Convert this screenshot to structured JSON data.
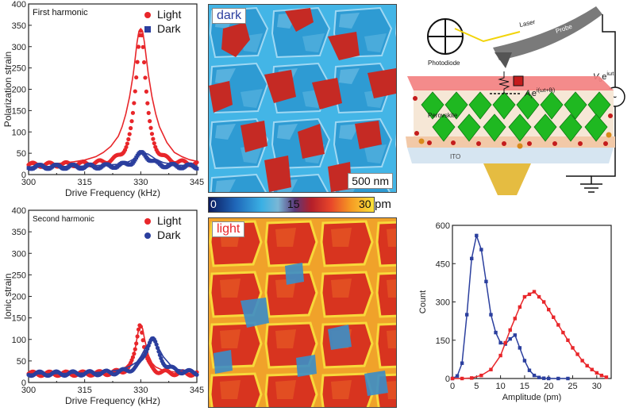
{
  "chart_data": [
    {
      "id": "first",
      "type": "scatter",
      "title": "First harmonic",
      "xlabel": "Drive Frequency (kHz)",
      "ylabel": "Polarization strain",
      "xlim": [
        300,
        345
      ],
      "ylim": [
        0,
        400
      ],
      "xticks": [
        300,
        315,
        330,
        345
      ],
      "xticks_minor": [
        307.5,
        322.5,
        337.5
      ],
      "yticks": [
        0,
        50,
        100,
        150,
        200,
        250,
        300,
        350,
        400
      ],
      "legend": "top-right",
      "series": [
        {
          "name": "Light",
          "color": "#e8262a",
          "marker": "circle",
          "peak": {
            "x0": 330,
            "amp": 320,
            "gamma": 1.6,
            "base": 22
          },
          "x": [
            300,
            303,
            306,
            309,
            312,
            315,
            318,
            320,
            322,
            324,
            325,
            326,
            327,
            328,
            328.5,
            329,
            329.5,
            330,
            330.5,
            331,
            331.5,
            332,
            333,
            334,
            335,
            337,
            339,
            341,
            343,
            345
          ],
          "y": [
            23,
            24,
            25,
            27,
            30,
            34,
            42,
            52,
            66,
            90,
            112,
            142,
            182,
            236,
            272,
            309,
            336,
            342,
            336,
            309,
            272,
            236,
            182,
            142,
            112,
            75,
            52,
            42,
            35,
            31
          ]
        },
        {
          "name": "Dark",
          "color": "#2b3f9e",
          "marker": "square",
          "peak": {
            "x0": 330.5,
            "amp": 32,
            "gamma": 2.2,
            "base": 18
          },
          "x": [
            300,
            305,
            310,
            315,
            320,
            324,
            326,
            327,
            328,
            329,
            330,
            331,
            332,
            333,
            334,
            336,
            340,
            345
          ],
          "y": [
            18,
            19,
            19,
            20,
            22,
            24,
            28,
            31,
            36,
            42,
            48,
            50,
            48,
            42,
            36,
            28,
            22,
            20
          ]
        }
      ]
    },
    {
      "id": "second",
      "type": "scatter",
      "title": "Second harmonic",
      "xlabel": "Drive Frequency (kHz)",
      "ylabel": "Ionic strain",
      "xlim": [
        300,
        345
      ],
      "ylim": [
        0,
        400
      ],
      "xticks": [
        300,
        315,
        330,
        345
      ],
      "xticks_minor": [
        307.5,
        322.5,
        337.5
      ],
      "yticks": [
        0,
        50,
        100,
        150,
        200,
        250,
        300,
        350,
        400
      ],
      "legend": "top-right",
      "series": [
        {
          "name": "Light",
          "color": "#e8262a",
          "marker": "circle",
          "peak": {
            "x0": 329.8,
            "amp": 118,
            "gamma": 1.2,
            "base": 20
          },
          "x": [
            300,
            305,
            310,
            315,
            320,
            324,
            326,
            327,
            328,
            328.5,
            329,
            329.5,
            330,
            330.5,
            331,
            332,
            333,
            334,
            336,
            340,
            345
          ],
          "y": [
            20,
            20,
            21,
            22,
            24,
            29,
            36,
            45,
            62,
            78,
            103,
            127,
            134,
            125,
            102,
            64,
            45,
            36,
            28,
            23,
            21
          ]
        },
        {
          "name": "Dark",
          "color": "#2b3f9e",
          "marker": "circle",
          "peak": {
            "x0": 333,
            "amp": 82,
            "gamma": 2.2,
            "base": 20
          },
          "x": [
            300,
            305,
            310,
            315,
            320,
            324,
            327,
            329,
            330,
            331,
            332,
            333,
            334,
            335,
            336,
            338,
            340,
            345
          ],
          "y": [
            20,
            20,
            21,
            22,
            24,
            29,
            37,
            48,
            60,
            76,
            90,
            100,
            92,
            76,
            60,
            40,
            30,
            24
          ]
        }
      ]
    },
    {
      "id": "hist",
      "type": "line",
      "title": "",
      "xlabel": "Amplitude (pm)",
      "ylabel": "Count",
      "xlim": [
        0,
        33
      ],
      "ylim": [
        0,
        600
      ],
      "xticks": [
        0,
        5,
        10,
        15,
        20,
        25,
        30
      ],
      "yticks": [
        0,
        150,
        300,
        450,
        600
      ],
      "legend": "none",
      "series": [
        {
          "name": "Dark",
          "color": "#2b3f9e",
          "x": [
            0,
            1,
            2,
            3,
            4,
            5,
            6,
            7,
            8,
            9,
            10,
            11,
            12,
            13,
            14,
            15,
            16,
            17,
            18,
            19,
            20,
            22,
            24
          ],
          "y": [
            0,
            10,
            60,
            250,
            470,
            560,
            505,
            380,
            250,
            180,
            140,
            135,
            155,
            170,
            120,
            70,
            32,
            12,
            4,
            1,
            0,
            0,
            0
          ]
        },
        {
          "name": "Light",
          "color": "#e8262a",
          "x": [
            0,
            2,
            4,
            6,
            8,
            10,
            11,
            12,
            13,
            14,
            15,
            16,
            17,
            18,
            19,
            20,
            21,
            22,
            23,
            24,
            25,
            26,
            27,
            28,
            29,
            30,
            31,
            32
          ],
          "y": [
            0,
            0,
            2,
            12,
            35,
            90,
            140,
            190,
            235,
            280,
            320,
            330,
            340,
            320,
            300,
            270,
            240,
            210,
            180,
            150,
            120,
            95,
            70,
            50,
            35,
            22,
            12,
            5
          ]
        }
      ]
    }
  ],
  "maps": {
    "dark_label": "dark",
    "light_label": "light",
    "scalebar_label": "500 nm",
    "colorbar_labels": [
      "0",
      "15",
      "30"
    ],
    "colorbar_unit": "pm"
  },
  "schematic": {
    "photodiode_label": "Photodiode",
    "laser_label": "Laser",
    "probe_label": "Probe",
    "perovskite_label": "Perovskite",
    "ito_label": "ITO",
    "drive_main": "V",
    "drive_sub": "0",
    "drive_exp": "iωt",
    "response_main": "A",
    "response_sub": "i",
    "response_exp": "i(ωt+θi)",
    "ac_symbol": "~"
  },
  "colors": {
    "light_red": "#e8262a",
    "dark_blue": "#2b3f9e",
    "map_blue": "#39a8dc",
    "map_red": "#c52a24",
    "electrode": "#f37e7e",
    "octahedra": "#1fb821"
  }
}
